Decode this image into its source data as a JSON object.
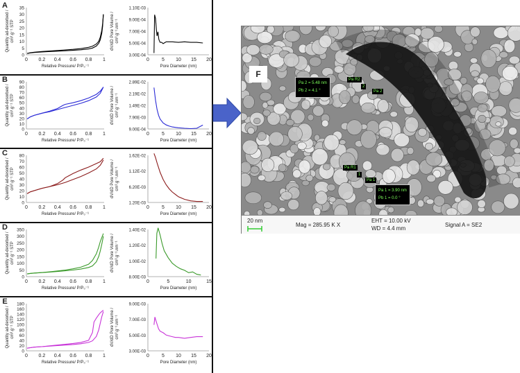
{
  "iso_ylabel_line1": "Quantity ad-desorbed /",
  "iso_ylabel_line2": "cm³.g⁻¹ STP",
  "iso_xlabel": "Relative Pressure/ P/P₀⁻¹",
  "psd_ylabel_line1": "dV/dD Pore Volume /",
  "psd_ylabel_line2": "cm³.g⁻¹.nm⁻¹",
  "psd_xlabel": "Pore Diameter (nm)",
  "arrow_color": "#4a63c9",
  "chart_data": [
    {
      "type": "line",
      "panel": "A",
      "chart": "isotherm",
      "color": "#000000",
      "xlim": [
        0,
        1
      ],
      "ylim": [
        0,
        35
      ],
      "xticks": [
        "0",
        "0.2",
        "0.4",
        "0.6",
        "0.8",
        "1"
      ],
      "yticks": [
        "0",
        "5",
        "10",
        "15",
        "20",
        "25",
        "30",
        "35"
      ],
      "series": [
        {
          "x": [
            0.01,
            0.05,
            0.1,
            0.2,
            0.3,
            0.4,
            0.5,
            0.6,
            0.7,
            0.8,
            0.85,
            0.9,
            0.93,
            0.95,
            0.97,
            0.98,
            0.99
          ],
          "y": [
            1.0,
            1.4,
            1.7,
            2.1,
            2.4,
            2.7,
            3.0,
            3.3,
            3.7,
            4.3,
            5.0,
            6.5,
            8.5,
            11,
            16,
            21,
            30
          ]
        },
        {
          "x": [
            0.99,
            0.98,
            0.97,
            0.95,
            0.93,
            0.9,
            0.85,
            0.8,
            0.7,
            0.6,
            0.5,
            0.4,
            0.3,
            0.2,
            0.1,
            0.05,
            0.01
          ],
          "y": [
            30,
            23,
            18,
            13,
            10,
            8,
            6.4,
            5.5,
            4.6,
            4.0,
            3.6,
            3.2,
            2.8,
            2.4,
            1.9,
            1.5,
            1.0
          ]
        }
      ]
    },
    {
      "type": "line",
      "panel": "A",
      "chart": "psd",
      "color": "#000000",
      "xlim": [
        0,
        20
      ],
      "ylim": [
        0.0003,
        0.0011
      ],
      "xticks": [
        "0",
        "5",
        "10",
        "15",
        "20"
      ],
      "yticks": [
        "3.00E-04",
        "5.00E-04",
        "7.00E-04",
        "9.00E-04",
        "1.10E-03"
      ],
      "series": [
        {
          "x": [
            2.0,
            2.2,
            2.5,
            2.8,
            3.0,
            3.3,
            3.6,
            4,
            4.5,
            5,
            6,
            8,
            10,
            12,
            14,
            16,
            18
          ],
          "y": [
            0.00033,
            0.00098,
            0.00092,
            0.00072,
            0.00062,
            0.00069,
            0.00056,
            0.00051,
            0.00051,
            0.00049,
            0.00052,
            0.00052,
            0.00051,
            0.00052,
            0.00051,
            0.00051,
            0.0005
          ]
        }
      ]
    },
    {
      "type": "line",
      "panel": "B",
      "chart": "isotherm",
      "color": "#2a2ad6",
      "xlim": [
        0,
        1
      ],
      "ylim": [
        0,
        90
      ],
      "xticks": [
        "0",
        "0.2",
        "0.4",
        "0.6",
        "0.8",
        "1"
      ],
      "yticks": [
        "0",
        "10",
        "20",
        "30",
        "40",
        "50",
        "60",
        "70",
        "80",
        "90"
      ],
      "series": [
        {
          "x": [
            0.01,
            0.05,
            0.1,
            0.2,
            0.3,
            0.4,
            0.5,
            0.6,
            0.7,
            0.8,
            0.9,
            0.95,
            0.99
          ],
          "y": [
            19,
            23,
            26,
            30,
            33,
            37,
            41,
            45,
            49,
            54,
            61,
            68,
            80
          ]
        },
        {
          "x": [
            0.99,
            0.95,
            0.9,
            0.8,
            0.7,
            0.6,
            0.5,
            0.47,
            0.4,
            0.3,
            0.2,
            0.1,
            0.05,
            0.01
          ],
          "y": [
            80,
            72,
            66,
            59,
            54,
            50,
            47,
            45,
            39,
            34,
            30,
            26,
            23,
            19
          ]
        }
      ]
    },
    {
      "type": "line",
      "panel": "B",
      "chart": "psd",
      "color": "#2a2ad6",
      "xlim": [
        0,
        20
      ],
      "ylim": [
        0.0009,
        0.0289
      ],
      "xticks": [
        "0",
        "5",
        "10",
        "15",
        "20"
      ],
      "yticks": [
        "9.00E-04",
        "7.90E-03",
        "1.49E-02",
        "2.19E-02",
        "2.89E-02"
      ],
      "series": [
        {
          "x": [
            2,
            2.5,
            3,
            3.5,
            4,
            5,
            6,
            7,
            8,
            10,
            12,
            14,
            16,
            18
          ],
          "y": [
            0.0255,
            0.018,
            0.0125,
            0.009,
            0.0068,
            0.0045,
            0.0033,
            0.0026,
            0.0021,
            0.0016,
            0.0013,
            0.0011,
            0.0013,
            0.0032
          ]
        }
      ]
    },
    {
      "type": "line",
      "panel": "C",
      "chart": "isotherm",
      "color": "#8b1a1a",
      "xlim": [
        0,
        1
      ],
      "ylim": [
        0,
        80
      ],
      "xticks": [
        "0",
        "0.2",
        "0.4",
        "0.6",
        "0.8",
        "1"
      ],
      "yticks": [
        "0",
        "10",
        "20",
        "30",
        "40",
        "50",
        "60",
        "70",
        "80"
      ],
      "series": [
        {
          "x": [
            0.01,
            0.05,
            0.1,
            0.2,
            0.3,
            0.4,
            0.5,
            0.6,
            0.7,
            0.8,
            0.9,
            0.95,
            0.99
          ],
          "y": [
            15,
            18,
            20,
            24,
            27,
            30,
            34,
            39,
            44,
            50,
            57,
            63,
            72
          ]
        },
        {
          "x": [
            0.99,
            0.95,
            0.9,
            0.8,
            0.7,
            0.6,
            0.5,
            0.47,
            0.4,
            0.3,
            0.2,
            0.1,
            0.05,
            0.01
          ],
          "y": [
            75,
            69,
            66,
            60,
            55,
            49,
            42,
            38,
            32,
            27,
            24,
            20,
            18,
            15
          ]
        }
      ]
    },
    {
      "type": "line",
      "panel": "C",
      "chart": "psd",
      "color": "#8b1a1a",
      "xlim": [
        0,
        20
      ],
      "ylim": [
        0.0012,
        0.0162
      ],
      "xticks": [
        "0",
        "5",
        "10",
        "15",
        "20"
      ],
      "yticks": [
        "1.20E-03",
        "6.20E-03",
        "1.12E-02",
        "1.62E-02"
      ],
      "series": [
        {
          "x": [
            2,
            2.5,
            3,
            4,
            5,
            6,
            7,
            8,
            10,
            12,
            14,
            16,
            18
          ],
          "y": [
            0.0168,
            0.0155,
            0.0138,
            0.0108,
            0.0085,
            0.0068,
            0.0055,
            0.0045,
            0.003,
            0.0022,
            0.0017,
            0.0015,
            0.0015
          ]
        }
      ]
    },
    {
      "type": "line",
      "panel": "D",
      "chart": "isotherm",
      "color": "#3a9a2a",
      "xlim": [
        0,
        1
      ],
      "ylim": [
        0,
        350
      ],
      "xticks": [
        "0",
        "0.2",
        "0.4",
        "0.6",
        "0.8",
        "1"
      ],
      "yticks": [
        "0",
        "50",
        "100",
        "150",
        "200",
        "250",
        "300",
        "350"
      ],
      "series": [
        {
          "x": [
            0.01,
            0.05,
            0.1,
            0.2,
            0.3,
            0.4,
            0.5,
            0.6,
            0.7,
            0.8,
            0.85,
            0.9,
            0.93,
            0.95,
            0.97,
            0.99
          ],
          "y": [
            20,
            23,
            26,
            30,
            34,
            38,
            43,
            49,
            56,
            68,
            80,
            110,
            150,
            190,
            240,
            300
          ]
        },
        {
          "x": [
            0.99,
            0.97,
            0.95,
            0.93,
            0.9,
            0.85,
            0.8,
            0.7,
            0.6,
            0.5,
            0.4,
            0.3,
            0.2,
            0.1,
            0.05,
            0.01
          ],
          "y": [
            320,
            290,
            260,
            220,
            170,
            120,
            92,
            70,
            58,
            49,
            42,
            36,
            31,
            27,
            24,
            20
          ]
        }
      ]
    },
    {
      "type": "line",
      "panel": "D",
      "chart": "psd",
      "color": "#3a9a2a",
      "xlim": [
        0,
        15
      ],
      "ylim": [
        0.008,
        0.014
      ],
      "xticks": [
        "0",
        "5",
        "10",
        "15"
      ],
      "yticks": [
        "8.00E-03",
        "1.00E-02",
        "1.20E-02",
        "1.40E-02"
      ],
      "series": [
        {
          "x": [
            2,
            2.2,
            2.5,
            3,
            3.5,
            4,
            5,
            6,
            7,
            8,
            9,
            10,
            11,
            12,
            13
          ],
          "y": [
            0.0103,
            0.0135,
            0.0142,
            0.0133,
            0.0122,
            0.0113,
            0.0104,
            0.0097,
            0.0093,
            0.009,
            0.0088,
            0.0085,
            0.0086,
            0.0083,
            0.0082
          ]
        }
      ]
    },
    {
      "type": "line",
      "panel": "E",
      "chart": "isotherm",
      "color": "#c832d8",
      "xlim": [
        0,
        1
      ],
      "ylim": [
        0,
        180
      ],
      "xticks": [
        "0",
        "0.2",
        "0.4",
        "0.6",
        "0.8",
        "1"
      ],
      "yticks": [
        "0",
        "20",
        "40",
        "60",
        "80",
        "100",
        "120",
        "140",
        "160",
        "180"
      ],
      "series": [
        {
          "x": [
            0.01,
            0.05,
            0.1,
            0.2,
            0.3,
            0.4,
            0.5,
            0.6,
            0.7,
            0.8,
            0.85,
            0.9,
            0.93,
            0.95,
            0.97,
            0.99
          ],
          "y": [
            10,
            12,
            14,
            16,
            18,
            20,
            22,
            24,
            27,
            32,
            38,
            55,
            80,
            105,
            130,
            150
          ]
        },
        {
          "x": [
            0.99,
            0.97,
            0.95,
            0.93,
            0.9,
            0.87,
            0.85,
            0.8,
            0.7,
            0.6,
            0.5,
            0.4,
            0.3,
            0.2,
            0.1,
            0.05,
            0.01
          ],
          "y": [
            155,
            150,
            145,
            138,
            125,
            110,
            70,
            40,
            32,
            28,
            25,
            22,
            19,
            16,
            14,
            12,
            10
          ]
        }
      ]
    },
    {
      "type": "line",
      "panel": "E",
      "chart": "psd",
      "color": "#c832d8",
      "xlim": [
        0,
        20
      ],
      "ylim": [
        0.003,
        0.009
      ],
      "xticks": [
        "0",
        "5",
        "10",
        "15",
        "20"
      ],
      "yticks": [
        "3.00E-03",
        "5.00E-03",
        "7.00E-03",
        "9.00E-03"
      ],
      "series": [
        {
          "x": [
            2,
            2.3,
            2.6,
            3,
            3.5,
            4,
            5,
            6,
            7,
            8,
            9,
            10,
            12,
            14,
            16,
            18
          ],
          "y": [
            0.0063,
            0.0073,
            0.0069,
            0.0064,
            0.0058,
            0.0055,
            0.0053,
            0.005,
            0.0049,
            0.0048,
            0.0047,
            0.0047,
            0.0046,
            0.0047,
            0.0048,
            0.0048
          ]
        }
      ]
    }
  ],
  "sem": {
    "panel_label": "F",
    "measure2_line1": "Pa 2 = 5.48 nm",
    "measure2_line2": "Pb 2 =   4.1 °",
    "tag_paR2": "Pa R2",
    "tag_2": "2",
    "tag_pa2": "Pa 2",
    "tag_paR1": "Pa R1",
    "tag_1": "1",
    "tag_pa1": "Pa 1",
    "measure1_line1": "Pa 1 = 3.90 nm",
    "measure1_line2": "Pb 1 =   0.0 °",
    "scale_bar_label": "20 nm",
    "mag": "Mag = 285.95 K X",
    "eht": "EHT = 10.00 kV",
    "wd": "WD =   4.4 mm",
    "signal": "Signal A = SE2"
  }
}
